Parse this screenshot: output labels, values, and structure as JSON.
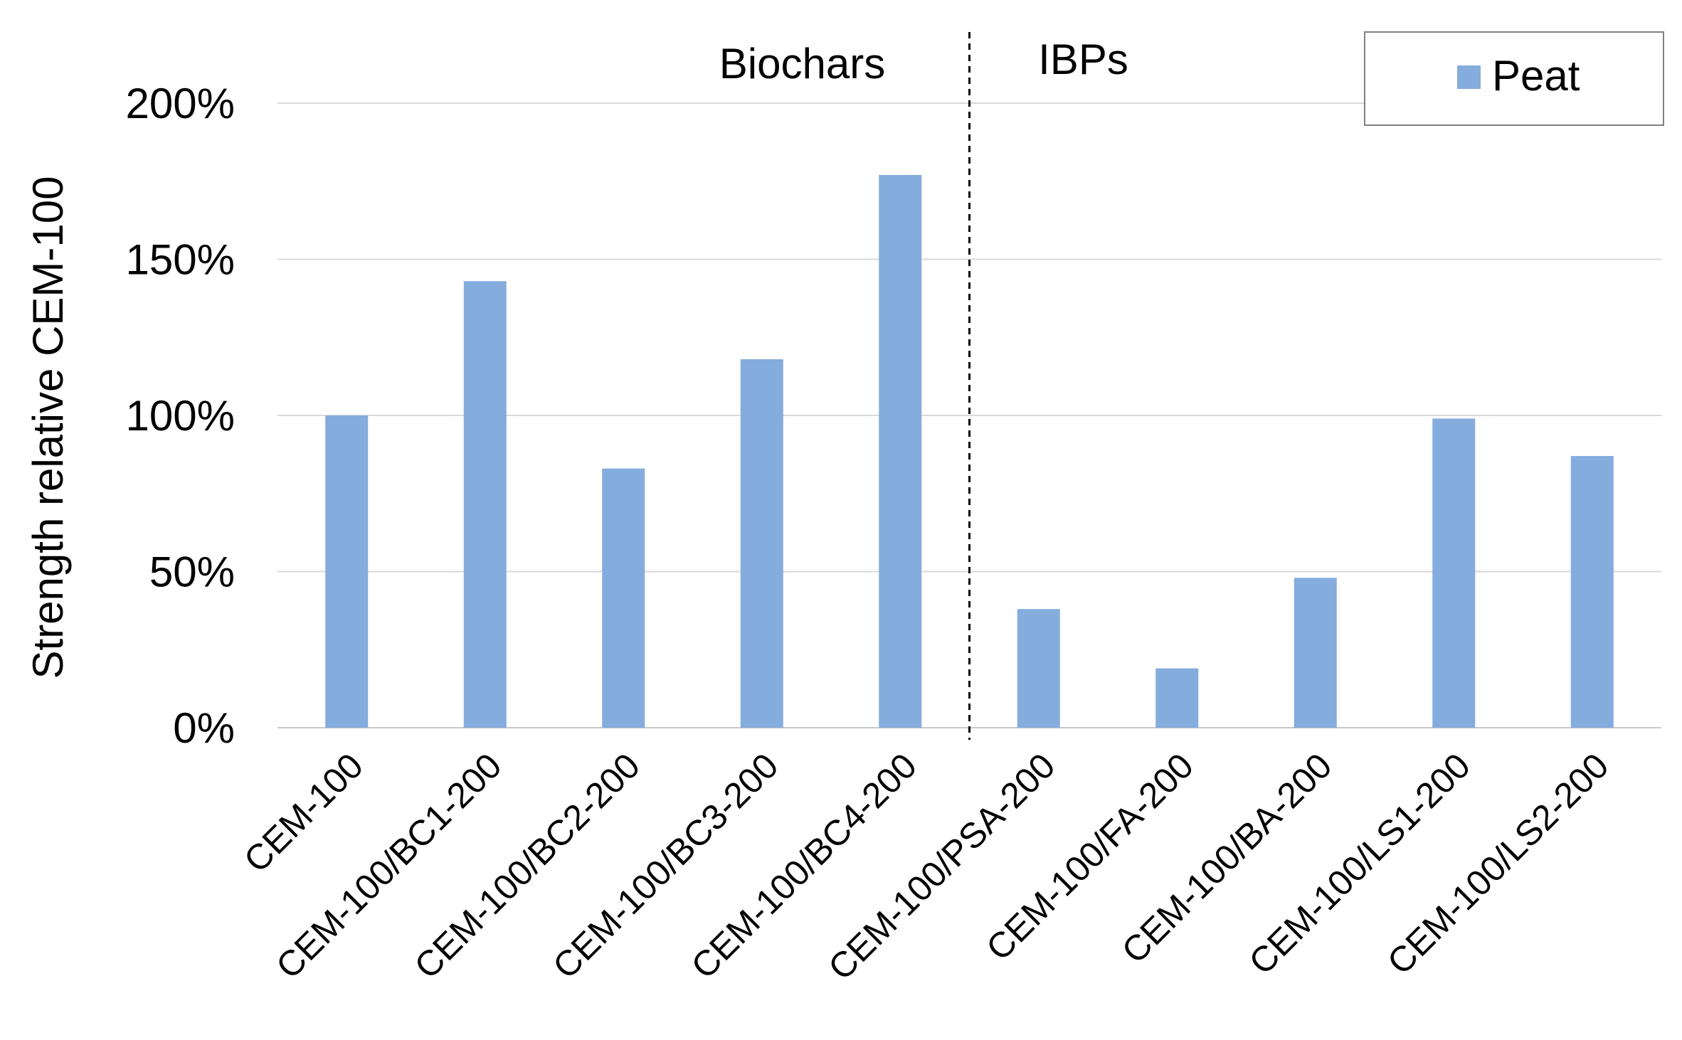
{
  "chart_data": {
    "type": "bar",
    "title": "",
    "xlabel": "",
    "ylabel": "Strength relative CEM-100",
    "ylim": [
      0,
      200
    ],
    "yticks": [
      "0%",
      "50%",
      "100%",
      "150%",
      "200%"
    ],
    "grid": true,
    "legend_position": "top-right",
    "categories": [
      "CEM-100",
      "CEM-100/BC1-200",
      "CEM-100/BC2-200",
      "CEM-100/BC3-200",
      "CEM-100/BC4-200",
      "CEM-100/PSA-200",
      "CEM-100/FA-200",
      "CEM-100/BA-200",
      "CEM-100/LS1-200",
      "CEM-100/LS2-200"
    ],
    "series": [
      {
        "name": "Peat",
        "color": "#84ACDD",
        "values": [
          100,
          143,
          83,
          118,
          177,
          38,
          19,
          48,
          99,
          87
        ]
      }
    ],
    "annotations": [
      {
        "text": "Biochars"
      },
      {
        "text": "IBPs"
      }
    ],
    "divider_after_category_index": 4
  }
}
